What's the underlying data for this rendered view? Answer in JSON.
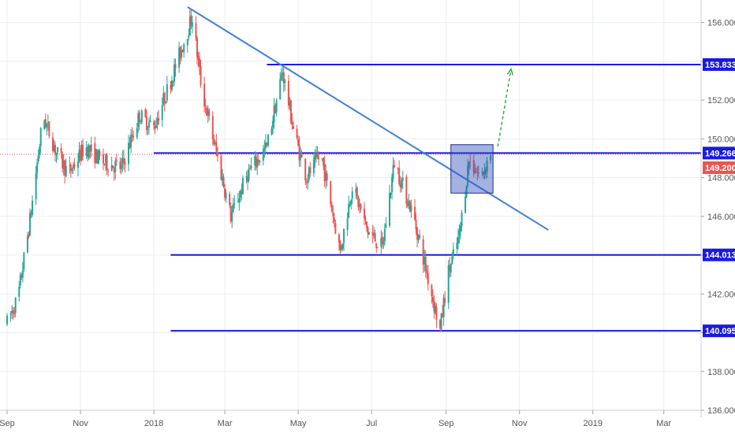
{
  "chart_data": {
    "type": "candlestick",
    "grid": true,
    "colors": {
      "up": "#26a69a",
      "down": "#ef5350",
      "level_line": "#1a1ae0",
      "trendline": "#3f7fd9",
      "zone_fill": "#3355bb",
      "arrow": "#2e9d46",
      "last_price_badge": "#ef5350",
      "axis_text": "#555555",
      "grid": "#e9edf3"
    },
    "x_axis": {
      "range": [
        "2017-09-01",
        "2019-04-01"
      ],
      "ticks": [
        {
          "label": "Sep",
          "date": "2017-09-01"
        },
        {
          "label": "Nov",
          "date": "2017-11-01"
        },
        {
          "label": "2018",
          "date": "2018-01-01"
        },
        {
          "label": "Mar",
          "date": "2018-03-01"
        },
        {
          "label": "May",
          "date": "2018-05-01"
        },
        {
          "label": "Jul",
          "date": "2018-07-01"
        },
        {
          "label": "Sep",
          "date": "2018-09-01"
        },
        {
          "label": "Nov",
          "date": "2018-11-01"
        },
        {
          "label": "2019",
          "date": "2019-01-01"
        },
        {
          "label": "Mar",
          "date": "2019-03-01"
        }
      ]
    },
    "y_axis": {
      "range": [
        136.0,
        157.0
      ],
      "ticks": [
        "156.000",
        "154.000",
        "152.000",
        "150.000",
        "148.000",
        "146.000",
        "144.000",
        "142.000",
        "140.000",
        "138.000",
        "136.000"
      ]
    },
    "price_path": [
      {
        "date": "2017-09-01",
        "value": 140.5
      },
      {
        "date": "2017-09-10",
        "value": 141.8
      },
      {
        "date": "2017-09-20",
        "value": 145.8
      },
      {
        "date": "2017-10-01",
        "value": 151.2
      },
      {
        "date": "2017-10-12",
        "value": 149.3
      },
      {
        "date": "2017-10-22",
        "value": 148.2
      },
      {
        "date": "2017-11-05",
        "value": 149.6
      },
      {
        "date": "2017-11-20",
        "value": 148.8
      },
      {
        "date": "2017-12-05",
        "value": 148.5
      },
      {
        "date": "2017-12-20",
        "value": 151.2
      },
      {
        "date": "2018-01-01",
        "value": 150.6
      },
      {
        "date": "2018-01-15",
        "value": 153.0
      },
      {
        "date": "2018-02-02",
        "value": 156.3
      },
      {
        "date": "2018-02-10",
        "value": 152.5
      },
      {
        "date": "2018-02-22",
        "value": 149.3
      },
      {
        "date": "2018-03-06",
        "value": 146.0
      },
      {
        "date": "2018-03-20",
        "value": 148.2
      },
      {
        "date": "2018-04-05",
        "value": 149.6
      },
      {
        "date": "2018-04-18",
        "value": 153.5
      },
      {
        "date": "2018-04-28",
        "value": 150.2
      },
      {
        "date": "2018-05-08",
        "value": 148.0
      },
      {
        "date": "2018-05-20",
        "value": 149.2
      },
      {
        "date": "2018-06-05",
        "value": 144.2
      },
      {
        "date": "2018-06-15",
        "value": 147.6
      },
      {
        "date": "2018-06-28",
        "value": 145.2
      },
      {
        "date": "2018-07-10",
        "value": 144.4
      },
      {
        "date": "2018-07-20",
        "value": 148.8
      },
      {
        "date": "2018-08-05",
        "value": 146.0
      },
      {
        "date": "2018-08-20",
        "value": 142.0
      },
      {
        "date": "2018-08-27",
        "value": 140.1
      },
      {
        "date": "2018-09-02",
        "value": 142.9
      },
      {
        "date": "2018-09-12",
        "value": 145.0
      },
      {
        "date": "2018-09-20",
        "value": 148.9
      },
      {
        "date": "2018-09-30",
        "value": 148.0
      },
      {
        "date": "2018-10-08",
        "value": 149.3
      }
    ],
    "levels": [
      {
        "value": 153.833,
        "label": "153.833",
        "from": "2018-04-05"
      },
      {
        "value": 149.266,
        "label": "149.266",
        "from": "2018-01-01"
      },
      {
        "value": 144.013,
        "label": "144.013",
        "from": "2018-01-15"
      },
      {
        "value": 140.095,
        "label": "140.095",
        "from": "2018-01-15"
      }
    ],
    "last_price": {
      "value": 149.2,
      "label": "149.200"
    },
    "trendline": {
      "start": {
        "date": "2018-01-29",
        "value": 156.8
      },
      "end": {
        "date": "2018-11-25",
        "value": 145.3
      }
    },
    "zone": {
      "from": "2018-09-05",
      "to": "2018-10-10",
      "low": 147.2,
      "high": 149.7
    },
    "arrow": {
      "start": {
        "date": "2018-10-14",
        "value": 149.6
      },
      "end": {
        "date": "2018-10-25",
        "value": 153.6
      }
    }
  }
}
